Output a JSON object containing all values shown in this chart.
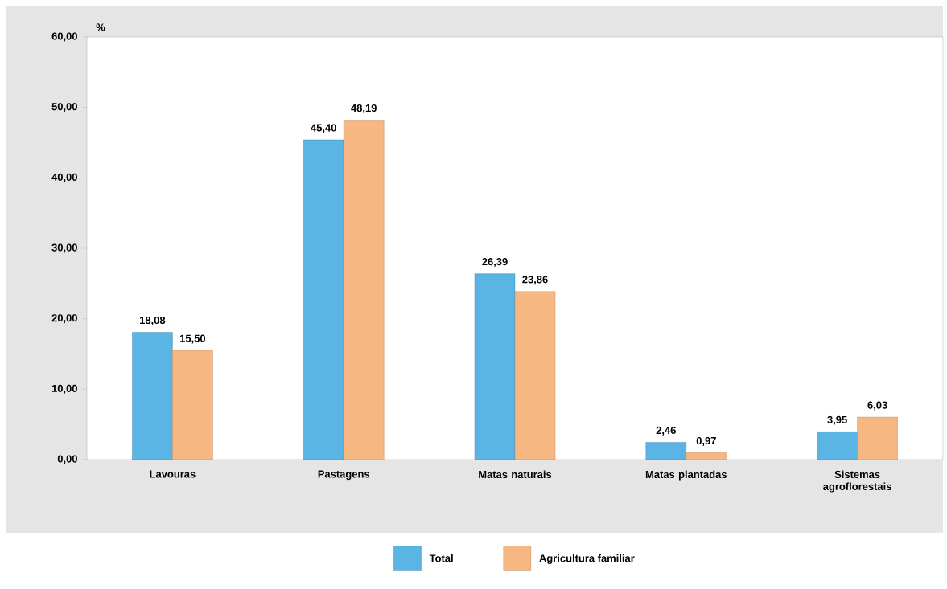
{
  "chart_data": {
    "type": "bar",
    "ylabel": "%",
    "categories": [
      "Lavouras",
      "Pastagens",
      "Matas naturais",
      "Matas plantadas",
      "Sistemas agroflorestais"
    ],
    "series": [
      {
        "name": "Total",
        "color": "#5ab4e4",
        "values": [
          18.08,
          45.4,
          26.39,
          2.46,
          3.95
        ],
        "value_labels": [
          "18,08",
          "45,40",
          "26,39",
          "2,46",
          "3,95"
        ]
      },
      {
        "name": "Agricultura familiar",
        "color": "#f6b782",
        "values": [
          15.5,
          48.19,
          23.86,
          0.97,
          6.03
        ],
        "value_labels": [
          "15,50",
          "48,19",
          "23,86",
          "0,97",
          "6,03"
        ]
      }
    ],
    "ylim": [
      0,
      60
    ],
    "yticks": [
      {
        "value": 0,
        "label": "0,00"
      },
      {
        "value": 10,
        "label": "10,00"
      },
      {
        "value": 20,
        "label": "20,00"
      },
      {
        "value": 30,
        "label": "30,00"
      },
      {
        "value": 40,
        "label": "40,00"
      },
      {
        "value": 50,
        "label": "50,00"
      },
      {
        "value": 60,
        "label": "60,00"
      }
    ],
    "grid": false,
    "legend": "bottom"
  }
}
